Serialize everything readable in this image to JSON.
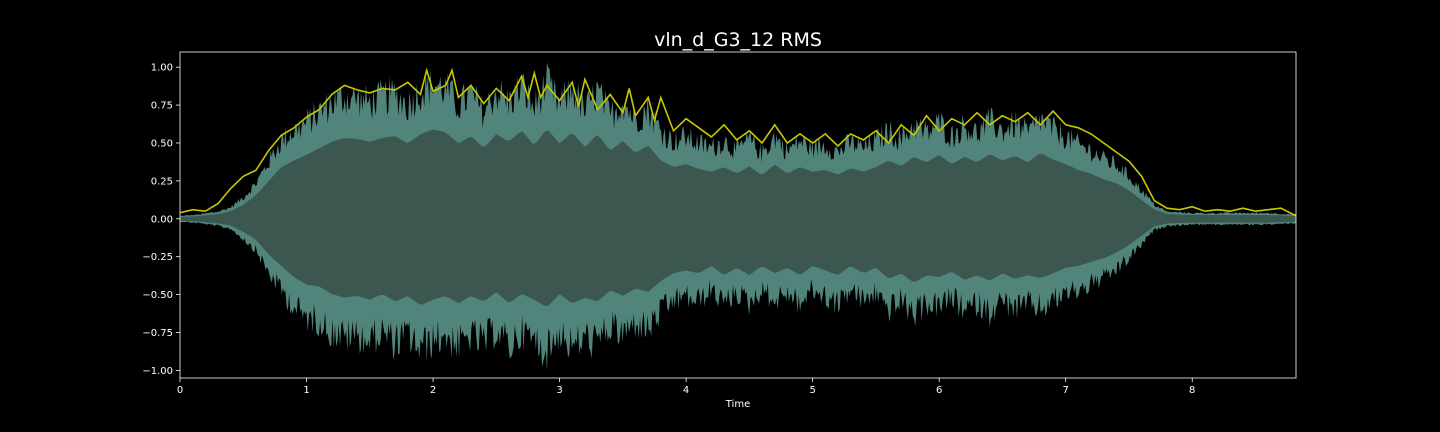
{
  "chart_data": {
    "type": "area",
    "title": "vln_d_G3_12 RMS",
    "xlabel": "Time",
    "ylabel": "",
    "xlim": [
      0,
      8.82
    ],
    "ylim": [
      -1.05,
      1.1
    ],
    "xticks": [
      0,
      1,
      2,
      3,
      4,
      5,
      6,
      7,
      8
    ],
    "xtick_labels": [
      "0",
      "1",
      "2",
      "3",
      "4",
      "5",
      "6",
      "7",
      "8"
    ],
    "yticks": [
      1.0,
      0.75,
      0.5,
      0.25,
      0.0,
      -0.25,
      -0.5,
      -0.75,
      -1.0
    ],
    "ytick_labels": [
      "1.00",
      "0.75",
      "0.50",
      "0.25",
      "0.00",
      "−0.25",
      "−0.50",
      "−0.75",
      "−1.00"
    ],
    "grid": false,
    "legend": "none",
    "series": [
      {
        "kind": "waveform",
        "x": [
          0.0,
          0.15,
          0.3,
          0.4,
          0.5,
          0.6,
          0.7,
          0.8,
          0.9,
          1.0,
          1.1,
          1.2,
          1.3,
          1.4,
          1.5,
          1.6,
          1.7,
          1.8,
          1.9,
          2.0,
          2.1,
          2.2,
          2.3,
          2.4,
          2.5,
          2.6,
          2.7,
          2.8,
          2.9,
          3.0,
          3.1,
          3.2,
          3.3,
          3.4,
          3.5,
          3.6,
          3.7,
          3.8,
          3.9,
          4.0,
          4.1,
          4.2,
          4.3,
          4.4,
          4.5,
          4.6,
          4.7,
          4.8,
          4.9,
          5.0,
          5.1,
          5.2,
          5.3,
          5.4,
          5.5,
          5.6,
          5.7,
          5.8,
          5.9,
          6.0,
          6.1,
          6.2,
          6.3,
          6.4,
          6.5,
          6.6,
          6.7,
          6.8,
          6.9,
          7.0,
          7.1,
          7.2,
          7.3,
          7.4,
          7.5,
          7.6,
          7.7,
          7.8,
          8.0,
          8.2,
          8.4,
          8.6,
          8.82
        ],
        "upper": [
          0.02,
          0.03,
          0.05,
          0.08,
          0.15,
          0.25,
          0.4,
          0.55,
          0.62,
          0.68,
          0.75,
          0.82,
          0.86,
          0.85,
          0.82,
          0.86,
          0.88,
          0.8,
          0.9,
          0.95,
          0.92,
          0.8,
          0.88,
          0.75,
          0.9,
          0.82,
          0.94,
          0.78,
          0.96,
          0.8,
          0.92,
          0.76,
          0.9,
          0.72,
          0.83,
          0.7,
          0.78,
          0.62,
          0.55,
          0.58,
          0.53,
          0.5,
          0.55,
          0.48,
          0.56,
          0.46,
          0.58,
          0.48,
          0.55,
          0.5,
          0.52,
          0.47,
          0.54,
          0.5,
          0.55,
          0.62,
          0.56,
          0.66,
          0.6,
          0.68,
          0.58,
          0.66,
          0.6,
          0.69,
          0.62,
          0.67,
          0.6,
          0.7,
          0.63,
          0.58,
          0.52,
          0.48,
          0.42,
          0.38,
          0.3,
          0.2,
          0.1,
          0.05,
          0.04,
          0.04,
          0.04,
          0.04,
          0.03
        ],
        "lower": [
          -0.02,
          -0.03,
          -0.05,
          -0.07,
          -0.14,
          -0.22,
          -0.38,
          -0.5,
          -0.62,
          -0.7,
          -0.72,
          -0.8,
          -0.84,
          -0.82,
          -0.86,
          -0.8,
          -0.88,
          -0.82,
          -0.92,
          -0.86,
          -0.82,
          -0.9,
          -0.82,
          -0.88,
          -0.78,
          -0.9,
          -0.8,
          -0.86,
          -0.94,
          -0.8,
          -0.9,
          -0.84,
          -0.88,
          -0.76,
          -0.82,
          -0.74,
          -0.78,
          -0.66,
          -0.58,
          -0.55,
          -0.58,
          -0.5,
          -0.6,
          -0.52,
          -0.6,
          -0.5,
          -0.58,
          -0.52,
          -0.6,
          -0.5,
          -0.55,
          -0.6,
          -0.5,
          -0.58,
          -0.52,
          -0.64,
          -0.58,
          -0.68,
          -0.6,
          -0.62,
          -0.56,
          -0.65,
          -0.6,
          -0.66,
          -0.58,
          -0.64,
          -0.6,
          -0.63,
          -0.58,
          -0.52,
          -0.5,
          -0.46,
          -0.42,
          -0.36,
          -0.28,
          -0.18,
          -0.08,
          -0.05,
          -0.04,
          -0.04,
          -0.04,
          -0.04,
          -0.03
        ],
        "color": "#5f9c90"
      },
      {
        "kind": "rms",
        "x": [
          0.0,
          0.1,
          0.2,
          0.3,
          0.4,
          0.5,
          0.6,
          0.7,
          0.8,
          0.9,
          1.0,
          1.1,
          1.2,
          1.3,
          1.4,
          1.5,
          1.6,
          1.7,
          1.8,
          1.9,
          1.95,
          2.0,
          2.1,
          2.15,
          2.2,
          2.3,
          2.4,
          2.5,
          2.6,
          2.7,
          2.75,
          2.8,
          2.85,
          2.9,
          3.0,
          3.1,
          3.15,
          3.2,
          3.3,
          3.4,
          3.5,
          3.55,
          3.6,
          3.7,
          3.75,
          3.8,
          3.9,
          4.0,
          4.1,
          4.2,
          4.3,
          4.4,
          4.5,
          4.6,
          4.7,
          4.8,
          4.9,
          5.0,
          5.1,
          5.2,
          5.3,
          5.4,
          5.5,
          5.6,
          5.7,
          5.8,
          5.9,
          6.0,
          6.1,
          6.2,
          6.3,
          6.4,
          6.5,
          6.6,
          6.7,
          6.8,
          6.9,
          7.0,
          7.1,
          7.2,
          7.3,
          7.4,
          7.5,
          7.6,
          7.7,
          7.8,
          7.9,
          8.0,
          8.1,
          8.2,
          8.3,
          8.4,
          8.5,
          8.6,
          8.7,
          8.82
        ],
        "y": [
          0.04,
          0.06,
          0.05,
          0.1,
          0.2,
          0.28,
          0.32,
          0.45,
          0.55,
          0.6,
          0.67,
          0.72,
          0.82,
          0.88,
          0.85,
          0.83,
          0.86,
          0.85,
          0.9,
          0.82,
          0.98,
          0.84,
          0.88,
          0.98,
          0.8,
          0.88,
          0.76,
          0.86,
          0.78,
          0.94,
          0.8,
          0.96,
          0.8,
          0.88,
          0.78,
          0.9,
          0.74,
          0.92,
          0.72,
          0.82,
          0.7,
          0.86,
          0.68,
          0.8,
          0.65,
          0.8,
          0.58,
          0.66,
          0.6,
          0.54,
          0.62,
          0.52,
          0.58,
          0.5,
          0.62,
          0.5,
          0.56,
          0.5,
          0.56,
          0.48,
          0.56,
          0.52,
          0.58,
          0.5,
          0.62,
          0.55,
          0.68,
          0.58,
          0.66,
          0.62,
          0.7,
          0.62,
          0.68,
          0.64,
          0.7,
          0.62,
          0.71,
          0.62,
          0.6,
          0.56,
          0.5,
          0.44,
          0.38,
          0.28,
          0.12,
          0.07,
          0.06,
          0.08,
          0.05,
          0.06,
          0.05,
          0.07,
          0.05,
          0.06,
          0.07,
          0.02
        ],
        "color": "#c8c800"
      }
    ]
  }
}
